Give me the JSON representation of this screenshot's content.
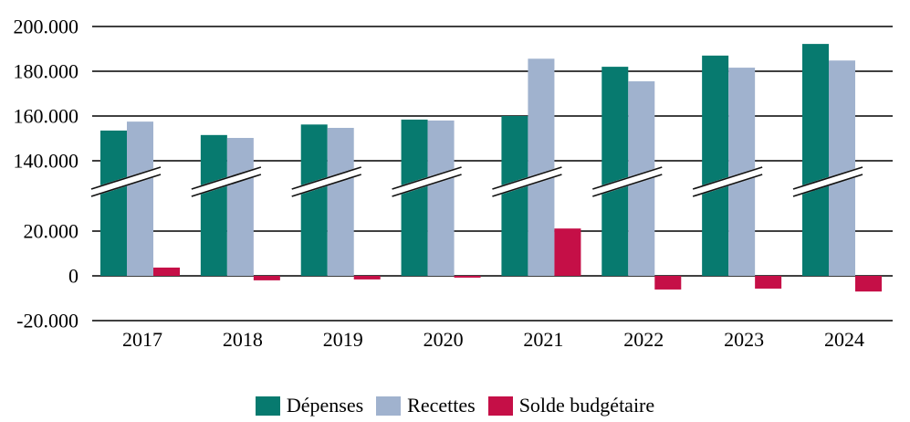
{
  "page": {
    "background": "#ffffff"
  },
  "chart_data": {
    "type": "bar",
    "title": "",
    "categories": [
      "2017",
      "2018",
      "2019",
      "2020",
      "2021",
      "2022",
      "2023",
      "2024"
    ],
    "series": [
      {
        "name": "Dépenses",
        "color": "#077A6F",
        "values": [
          153500,
          151500,
          156200,
          158400,
          160000,
          182000,
          187000,
          192200
        ]
      },
      {
        "name": "Recettes",
        "color": "#A0B2CE",
        "values": [
          157500,
          150200,
          154700,
          158000,
          185600,
          175500,
          181600,
          184800
        ]
      },
      {
        "name": "Solde budgétaire",
        "color": "#C50F47",
        "values": [
          3700,
          -2000,
          -1600,
          -800,
          24400,
          -6100,
          -5700,
          -7000
        ]
      }
    ],
    "y_tick_labels": [
      "200.000",
      "180.000",
      "160.000",
      "140.000",
      "20.000",
      "0",
      "-20.000"
    ],
    "y_tick_values": [
      200000,
      180000,
      160000,
      140000,
      20000,
      0,
      -20000
    ],
    "axis_break": {
      "between": [
        20000,
        140000
      ],
      "marker": "double-slash"
    },
    "grid": true,
    "gridline_color": "#000000",
    "legend_position": "bottom",
    "ylim_upper": [
      140000,
      200000
    ],
    "ylim_lower": [
      -20000,
      20000
    ],
    "xlabel": "",
    "ylabel": ""
  }
}
